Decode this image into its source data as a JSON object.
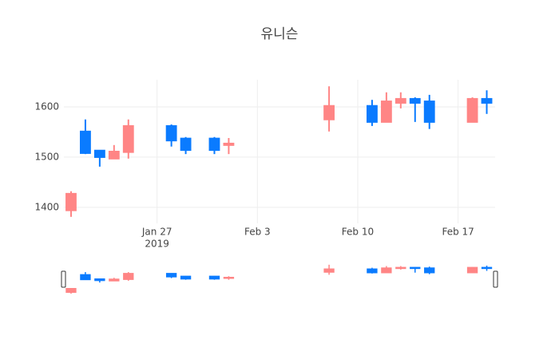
{
  "chart_data": {
    "type": "candlestick",
    "title": "유니슨",
    "x": [
      "2019-01-21",
      "2019-01-22",
      "2019-01-23",
      "2019-01-24",
      "2019-01-25",
      "2019-01-28",
      "2019-01-29",
      "2019-01-31",
      "2019-02-01",
      "2019-02-08",
      "2019-02-11",
      "2019-02-12",
      "2019-02-13",
      "2019-02-14",
      "2019-02-15",
      "2019-02-18",
      "2019-02-19"
    ],
    "open": [
      1394,
      1551,
      1513,
      1497,
      1510,
      1562,
      1537,
      1537,
      1524,
      1575,
      1602,
      1570,
      1608,
      1616,
      1611,
      1570,
      1616
    ],
    "high": [
      1432,
      1575,
      1513,
      1524,
      1575,
      1565,
      1540,
      1540,
      1538,
      1641,
      1614,
      1629,
      1629,
      1619,
      1624,
      1619,
      1633
    ],
    "low": [
      1381,
      1506,
      1481,
      1497,
      1497,
      1521,
      1506,
      1506,
      1506,
      1551,
      1562,
      1570,
      1597,
      1570,
      1556,
      1570,
      1586
    ],
    "close": [
      1427,
      1508,
      1500,
      1511,
      1562,
      1533,
      1514,
      1514,
      1527,
      1602,
      1570,
      1611,
      1616,
      1608,
      1570,
      1616,
      1608
    ],
    "increasing_color": "#ff8585",
    "decreasing_color": "#0a7bff",
    "xlim": [
      "2019-01-20T12:00:00Z",
      "2019-02-19T14:00:00Z"
    ],
    "xticks": [
      {
        "value": "2019-01-27",
        "label": "Jan 27"
      },
      {
        "value": "2019-02-03",
        "label": "Feb 3"
      },
      {
        "value": "2019-02-10",
        "label": "Feb 10"
      },
      {
        "value": "2019-02-17",
        "label": "Feb 17"
      }
    ],
    "xtick_year": "2019",
    "ylim": [
      1368,
      1654
    ],
    "yticks": [
      1400,
      1500,
      1600
    ],
    "grid": true,
    "rangeslider": true
  }
}
